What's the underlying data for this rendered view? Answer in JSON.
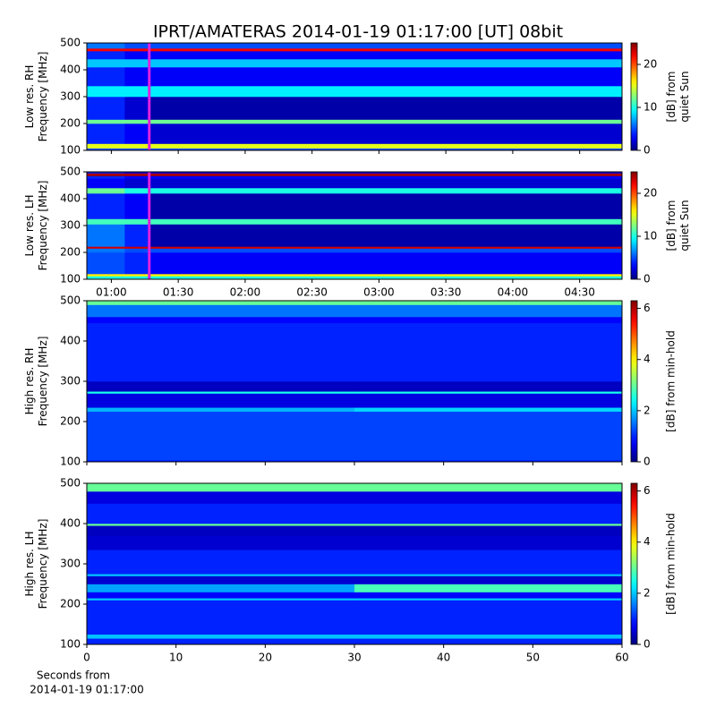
{
  "title": "IPRT/AMATERAS 2014-01-19 01:17:00 [UT]   08bit",
  "chart_data": [
    {
      "type": "heatmap",
      "ylabel": [
        "Low res. RH",
        "Frequency [MHz]"
      ],
      "colorbar_label": [
        "[dB] from",
        "quiet Sun"
      ],
      "ylim": [
        100,
        500
      ],
      "yticks": [
        100,
        200,
        300,
        400,
        500
      ],
      "xlim": [
        49,
        289
      ],
      "xticks": [
        {
          "value": 60,
          "label": "01:00"
        },
        {
          "value": 90,
          "label": "01:30"
        },
        {
          "value": 120,
          "label": "02:00"
        },
        {
          "value": 150,
          "label": "02:30"
        },
        {
          "value": 180,
          "label": "03:00"
        },
        {
          "value": 210,
          "label": "03:30"
        },
        {
          "value": 240,
          "label": "04:00"
        },
        {
          "value": 270,
          "label": "04:30"
        }
      ],
      "show_xtick_labels": false,
      "x_edges": [
        49,
        66,
        77,
        289
      ],
      "y_edges": [
        100,
        108,
        125,
        200,
        215,
        300,
        340,
        410,
        440,
        470,
        480,
        500
      ],
      "values": [
        [
          5,
          5,
          5
        ],
        [
          15,
          15,
          15
        ],
        [
          4,
          3,
          2
        ],
        [
          12,
          12,
          12
        ],
        [
          4,
          2,
          1
        ],
        [
          9,
          9,
          9
        ],
        [
          4,
          3,
          3
        ],
        [
          8,
          8,
          8
        ],
        [
          4,
          3,
          3
        ],
        [
          22,
          22,
          22
        ],
        [
          6,
          5,
          5
        ]
      ],
      "clim": [
        0,
        25
      ],
      "cticks": [
        0,
        10,
        20
      ],
      "colormap": "jet",
      "marker_x": 77,
      "marker_color": "#e020e0"
    },
    {
      "type": "heatmap",
      "ylabel": [
        "Low res. LH",
        "Frequency [MHz]"
      ],
      "colorbar_label": [
        "[dB] from",
        "quiet Sun"
      ],
      "ylim": [
        100,
        500
      ],
      "yticks": [
        100,
        200,
        300,
        400,
        500
      ],
      "xlim": [
        49,
        289
      ],
      "xticks": [
        {
          "value": 60,
          "label": "01:00"
        },
        {
          "value": 90,
          "label": "01:30"
        },
        {
          "value": 120,
          "label": "02:00"
        },
        {
          "value": 150,
          "label": "02:30"
        },
        {
          "value": 180,
          "label": "03:00"
        },
        {
          "value": 210,
          "label": "03:30"
        },
        {
          "value": 240,
          "label": "04:00"
        },
        {
          "value": 270,
          "label": "04:30"
        }
      ],
      "show_xtick_labels": true,
      "x_edges": [
        49,
        66,
        77,
        289
      ],
      "y_edges": [
        100,
        112,
        120,
        200,
        215,
        222,
        305,
        325,
        420,
        440,
        475,
        485,
        495,
        500
      ],
      "values": [
        [
          10,
          10,
          10
        ],
        [
          16,
          16,
          16
        ],
        [
          5,
          4,
          3
        ],
        [
          6,
          5,
          5
        ],
        [
          23,
          23,
          23
        ],
        [
          6,
          4,
          1
        ],
        [
          11,
          11,
          11
        ],
        [
          4,
          3,
          1
        ],
        [
          12,
          10,
          10
        ],
        [
          3,
          2,
          2
        ],
        [
          4,
          3,
          3
        ],
        [
          24,
          24,
          24
        ],
        [
          4,
          3,
          3
        ]
      ],
      "clim": [
        0,
        25
      ],
      "cticks": [
        0,
        10,
        20
      ],
      "colormap": "jet",
      "marker_x": 77,
      "marker_color": "#e020e0"
    },
    {
      "type": "heatmap",
      "ylabel": [
        "High res. RH",
        "Frequency [MHz]"
      ],
      "colorbar_label": [
        "[dB] from min-hold"
      ],
      "ylim": [
        100,
        500
      ],
      "yticks": [
        100,
        200,
        300,
        400,
        500
      ],
      "xlim": [
        0,
        60
      ],
      "xticks": [
        0,
        10,
        20,
        30,
        40,
        50,
        60
      ],
      "show_xtick_labels": false,
      "x_edges": [
        0,
        30,
        60
      ],
      "y_edges": [
        100,
        105,
        225,
        235,
        270,
        275,
        300,
        445,
        460,
        490,
        500
      ],
      "values": [
        [
          1,
          1
        ],
        [
          1.2,
          1.2
        ],
        [
          1.9,
          2.1
        ],
        [
          0.6,
          0.6
        ],
        [
          2.5,
          2.5
        ],
        [
          0.4,
          0.4
        ],
        [
          1,
          1
        ],
        [
          0.8,
          0.8
        ],
        [
          1.5,
          1.5
        ],
        [
          3,
          3
        ]
      ],
      "clim": [
        0,
        6.3
      ],
      "cticks": [
        0,
        2,
        4,
        6
      ],
      "colormap": "jet"
    },
    {
      "type": "heatmap",
      "ylabel": [
        "High res. LH",
        "Frequency [MHz]"
      ],
      "colorbar_label": [
        "[dB] from min-hold"
      ],
      "ylim": [
        100,
        500
      ],
      "yticks": [
        100,
        200,
        300,
        400,
        500
      ],
      "xlim": [
        0,
        60
      ],
      "xticks": [
        0,
        10,
        20,
        30,
        40,
        50,
        60
      ],
      "show_xtick_labels": true,
      "xlabel": [
        "Seconds from",
        "2014-01-19 01:17:00"
      ],
      "x_edges": [
        0,
        30,
        60
      ],
      "y_edges": [
        100,
        115,
        125,
        210,
        215,
        230,
        250,
        270,
        275,
        335,
        370,
        395,
        400,
        450,
        480,
        500
      ],
      "values": [
        [
          1,
          1
        ],
        [
          2,
          2
        ],
        [
          1,
          1
        ],
        [
          2,
          2
        ],
        [
          0.8,
          0.8
        ],
        [
          1.8,
          2.8
        ],
        [
          0.5,
          0.5
        ],
        [
          2,
          2
        ],
        [
          1,
          1
        ],
        [
          0.5,
          0.5
        ],
        [
          0.4,
          0.4
        ],
        [
          3,
          3
        ],
        [
          1,
          1
        ],
        [
          0.6,
          0.6
        ],
        [
          3,
          3
        ]
      ],
      "clim": [
        0,
        6.3
      ],
      "cticks": [
        0,
        2,
        4,
        6
      ],
      "colormap": "jet"
    }
  ]
}
